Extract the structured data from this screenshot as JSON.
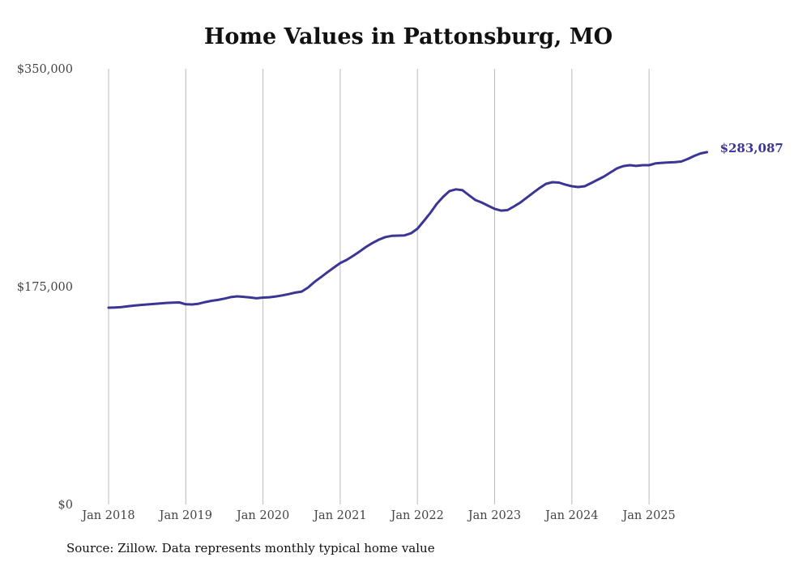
{
  "chart_data": {
    "type": "line",
    "title": "Home Values in Pattonsburg, MO",
    "source": "Source: Zillow. Data represents monthly typical home value",
    "xlabel": "",
    "ylabel": "",
    "ylim": [
      0,
      350000
    ],
    "y_ticks": [
      {
        "value": 0,
        "label": "$0"
      },
      {
        "value": 175000,
        "label": "$175,000"
      },
      {
        "value": 350000,
        "label": "$350,000"
      }
    ],
    "x_ticks": [
      {
        "year": 2018,
        "label": "Jan 2018"
      },
      {
        "year": 2019,
        "label": "Jan 2019"
      },
      {
        "year": 2020,
        "label": "Jan 2020"
      },
      {
        "year": 2021,
        "label": "Jan 2021"
      },
      {
        "year": 2022,
        "label": "Jan 2022"
      },
      {
        "year": 2023,
        "label": "Jan 2023"
      },
      {
        "year": 2024,
        "label": "Jan 2024"
      },
      {
        "year": 2025,
        "label": "Jan 2025"
      }
    ],
    "grid": "vertical",
    "series": [
      {
        "name": "Typical home value",
        "color": "#3b3594",
        "start": "2018-01",
        "frequency": "monthly",
        "values_k": [
          158.1,
          158.3,
          158.6,
          159.2,
          159.8,
          160.3,
          160.7,
          161.1,
          161.5,
          161.9,
          162.1,
          162.3,
          160.8,
          160.7,
          161.3,
          162.6,
          163.6,
          164.3,
          165.4,
          166.6,
          167.2,
          166.8,
          166.3,
          165.6,
          166.2,
          166.5,
          167.1,
          168.0,
          169.0,
          170.2,
          171.0,
          174.3,
          178.8,
          182.6,
          186.5,
          190.3,
          193.9,
          196.5,
          199.7,
          203.2,
          206.9,
          210.0,
          212.7,
          214.8,
          215.8,
          216.0,
          216.2,
          217.9,
          221.5,
          227.7,
          234.2,
          241.4,
          247.2,
          251.8,
          253.2,
          252.5,
          248.5,
          244.6,
          242.6,
          240.0,
          237.5,
          236.1,
          236.5,
          239.4,
          242.6,
          246.5,
          250.4,
          254.3,
          257.6,
          258.9,
          258.6,
          256.9,
          255.7,
          255.0,
          255.7,
          258.2,
          260.9,
          263.5,
          266.7,
          270.0,
          271.9,
          272.6,
          272.0,
          272.6,
          272.6,
          274.0,
          274.5,
          274.8,
          275.0,
          275.5,
          277.5,
          280.0,
          282.0,
          283.087
        ],
        "end_label": "$283,087"
      }
    ]
  }
}
